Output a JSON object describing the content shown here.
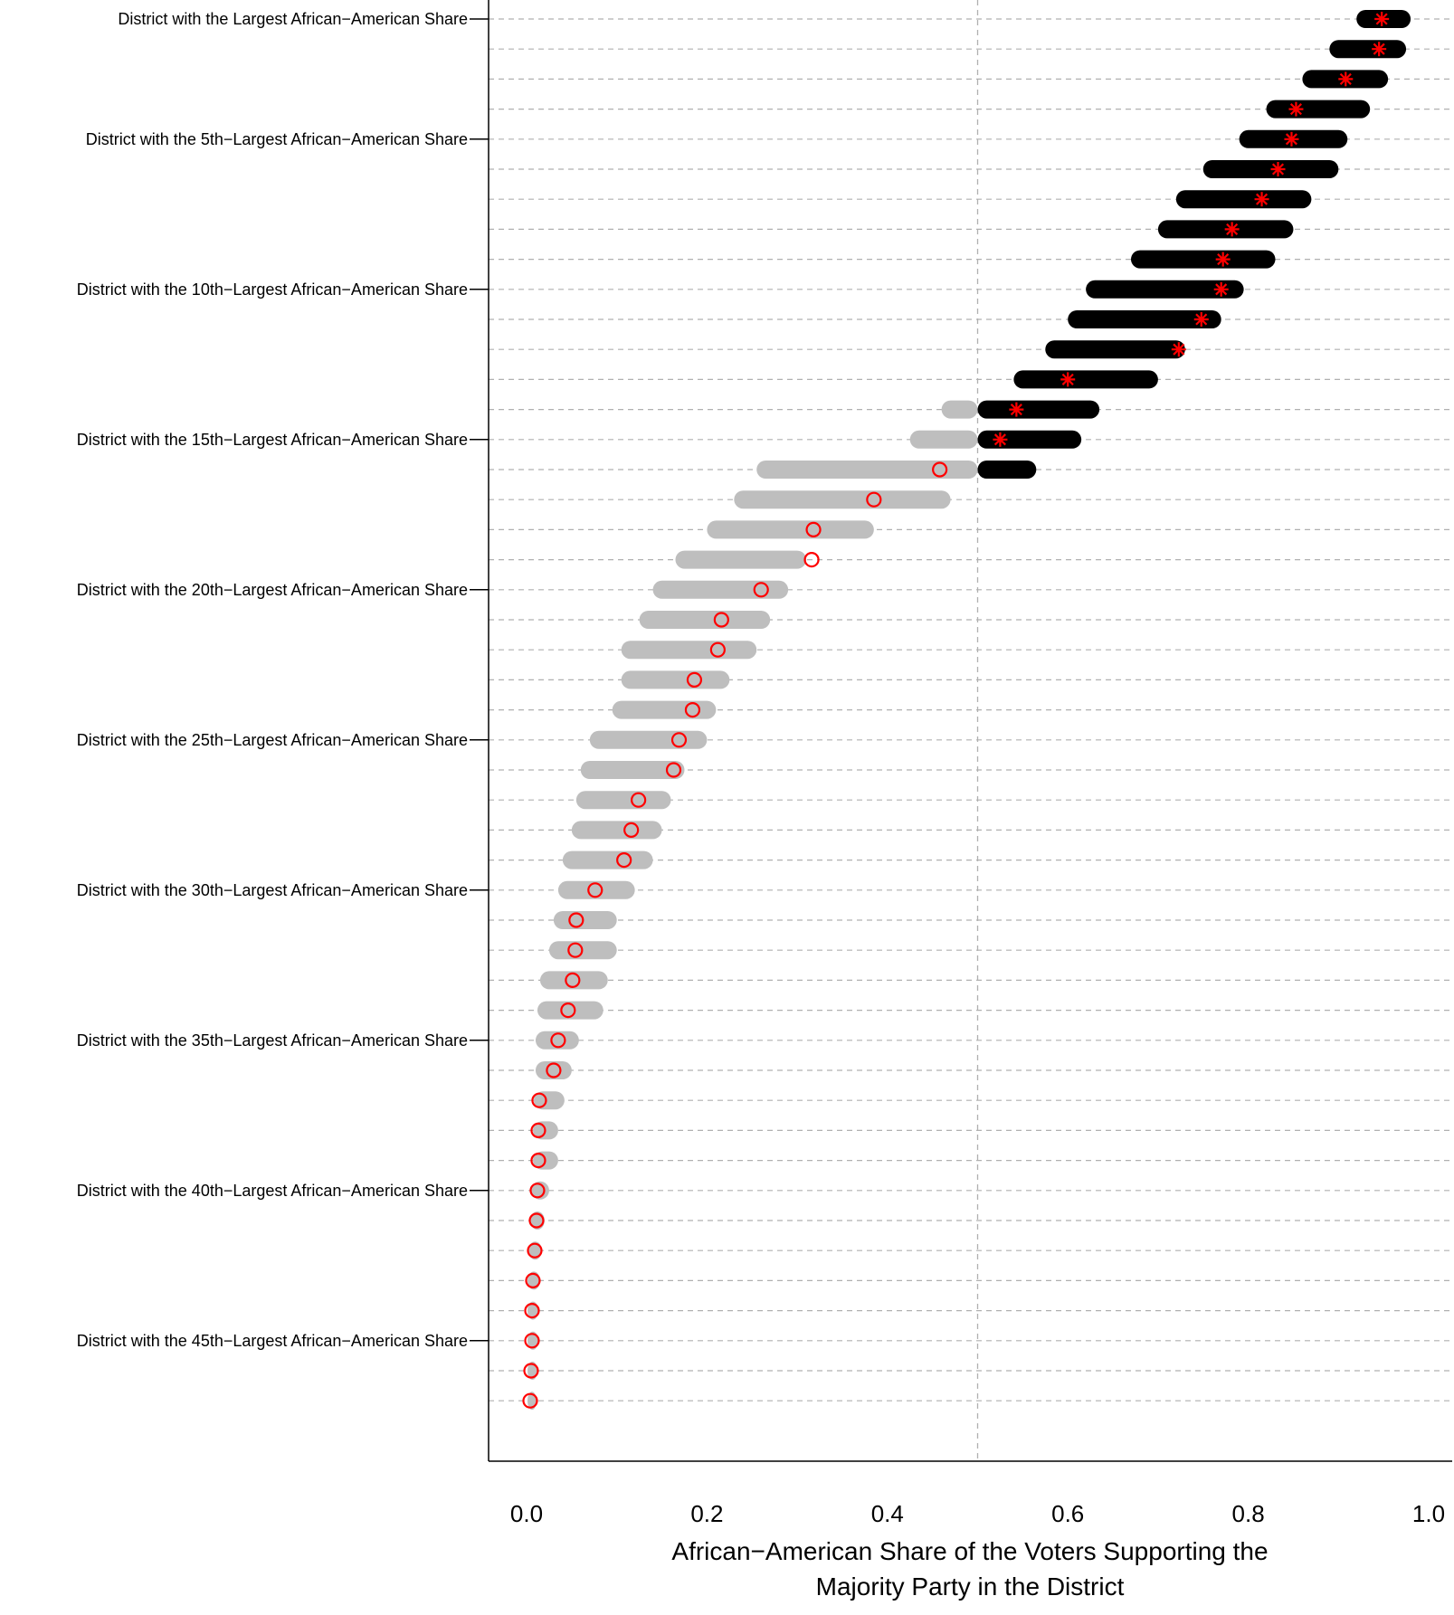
{
  "chart_data": {
    "type": "scatter",
    "title": "",
    "xlabel_lines": [
      "African−American Share of the Voters Supporting the",
      "Majority Party in the District"
    ],
    "xlim": [
      0.0,
      1.0
    ],
    "x_ticks": [
      "0.0",
      "0.2",
      "0.4",
      "0.6",
      "0.8",
      "1.0"
    ],
    "reference_line_x": 0.5,
    "grid": "horizontal dashed lines at each district",
    "y_tick_labels": [
      {
        "rank": 1,
        "text": "District with the Largest African−American Share"
      },
      {
        "rank": 5,
        "text": "District with the 5th−Largest African−American Share"
      },
      {
        "rank": 10,
        "text": "District with the 10th−Largest African−American Share"
      },
      {
        "rank": 15,
        "text": "District with the 15th−Largest African−American Share"
      },
      {
        "rank": 20,
        "text": "District with the 20th−Largest African−American Share"
      },
      {
        "rank": 25,
        "text": "District with the 25th−Largest African−American Share"
      },
      {
        "rank": 30,
        "text": "District with the 30th−Largest African−American Share"
      },
      {
        "rank": 35,
        "text": "District with the 35th−Largest African−American Share"
      },
      {
        "rank": 40,
        "text": "District with the 40th−Largest African−American Share"
      },
      {
        "rank": 45,
        "text": "District with the 45th−Largest African−American Share"
      }
    ],
    "colors": {
      "simulations_below_half": "#bebebe",
      "simulations_above_half": "#000000",
      "estimate": "#ff0000",
      "grid": "#b0b0b0"
    },
    "series": [
      {
        "rank": 1,
        "estimate": 0.948,
        "min": 0.92,
        "max": 0.98
      },
      {
        "rank": 2,
        "estimate": 0.945,
        "min": 0.89,
        "max": 0.975
      },
      {
        "rank": 3,
        "estimate": 0.908,
        "min": 0.86,
        "max": 0.955
      },
      {
        "rank": 4,
        "estimate": 0.853,
        "min": 0.82,
        "max": 0.935
      },
      {
        "rank": 5,
        "estimate": 0.848,
        "min": 0.79,
        "max": 0.91
      },
      {
        "rank": 6,
        "estimate": 0.833,
        "min": 0.75,
        "max": 0.9
      },
      {
        "rank": 7,
        "estimate": 0.815,
        "min": 0.72,
        "max": 0.87
      },
      {
        "rank": 8,
        "estimate": 0.782,
        "min": 0.7,
        "max": 0.85
      },
      {
        "rank": 9,
        "estimate": 0.772,
        "min": 0.67,
        "max": 0.83
      },
      {
        "rank": 10,
        "estimate": 0.77,
        "min": 0.62,
        "max": 0.795
      },
      {
        "rank": 11,
        "estimate": 0.748,
        "min": 0.6,
        "max": 0.77
      },
      {
        "rank": 12,
        "estimate": 0.723,
        "min": 0.575,
        "max": 0.73
      },
      {
        "rank": 13,
        "estimate": 0.6,
        "min": 0.54,
        "max": 0.7
      },
      {
        "rank": 14,
        "estimate": 0.543,
        "min": 0.46,
        "max": 0.635
      },
      {
        "rank": 15,
        "estimate": 0.525,
        "min": 0.425,
        "max": 0.615
      },
      {
        "rank": 16,
        "estimate": 0.458,
        "min": 0.255,
        "max": 0.565
      },
      {
        "rank": 17,
        "estimate": 0.385,
        "min": 0.23,
        "max": 0.47
      },
      {
        "rank": 18,
        "estimate": 0.318,
        "min": 0.2,
        "max": 0.385
      },
      {
        "rank": 19,
        "estimate": 0.316,
        "min": 0.165,
        "max": 0.31
      },
      {
        "rank": 20,
        "estimate": 0.26,
        "min": 0.14,
        "max": 0.29
      },
      {
        "rank": 21,
        "estimate": 0.216,
        "min": 0.125,
        "max": 0.27
      },
      {
        "rank": 22,
        "estimate": 0.212,
        "min": 0.105,
        "max": 0.255
      },
      {
        "rank": 23,
        "estimate": 0.186,
        "min": 0.105,
        "max": 0.225
      },
      {
        "rank": 24,
        "estimate": 0.184,
        "min": 0.095,
        "max": 0.21
      },
      {
        "rank": 25,
        "estimate": 0.169,
        "min": 0.07,
        "max": 0.2
      },
      {
        "rank": 26,
        "estimate": 0.163,
        "min": 0.06,
        "max": 0.175
      },
      {
        "rank": 27,
        "estimate": 0.124,
        "min": 0.055,
        "max": 0.16
      },
      {
        "rank": 28,
        "estimate": 0.116,
        "min": 0.05,
        "max": 0.15
      },
      {
        "rank": 29,
        "estimate": 0.108,
        "min": 0.04,
        "max": 0.14
      },
      {
        "rank": 30,
        "estimate": 0.076,
        "min": 0.035,
        "max": 0.12
      },
      {
        "rank": 31,
        "estimate": 0.055,
        "min": 0.03,
        "max": 0.1
      },
      {
        "rank": 32,
        "estimate": 0.054,
        "min": 0.025,
        "max": 0.1
      },
      {
        "rank": 33,
        "estimate": 0.051,
        "min": 0.015,
        "max": 0.09
      },
      {
        "rank": 34,
        "estimate": 0.046,
        "min": 0.012,
        "max": 0.085
      },
      {
        "rank": 35,
        "estimate": 0.035,
        "min": 0.01,
        "max": 0.058
      },
      {
        "rank": 36,
        "estimate": 0.03,
        "min": 0.01,
        "max": 0.05
      },
      {
        "rank": 37,
        "estimate": 0.014,
        "min": 0.008,
        "max": 0.042
      },
      {
        "rank": 38,
        "estimate": 0.013,
        "min": 0.007,
        "max": 0.035
      },
      {
        "rank": 39,
        "estimate": 0.013,
        "min": 0.007,
        "max": 0.035
      },
      {
        "rank": 40,
        "estimate": 0.012,
        "min": 0.005,
        "max": 0.025
      },
      {
        "rank": 41,
        "estimate": 0.011,
        "min": 0.004,
        "max": 0.02
      },
      {
        "rank": 42,
        "estimate": 0.009,
        "min": 0.002,
        "max": 0.017
      },
      {
        "rank": 43,
        "estimate": 0.007,
        "min": 0.001,
        "max": 0.015
      },
      {
        "rank": 44,
        "estimate": 0.006,
        "min": 0.001,
        "max": 0.013
      },
      {
        "rank": 45,
        "estimate": 0.006,
        "min": 0.001,
        "max": 0.013
      },
      {
        "rank": 46,
        "estimate": 0.005,
        "min": 0.001,
        "max": 0.012
      },
      {
        "rank": 47,
        "estimate": 0.004,
        "min": 0.001,
        "max": 0.011
      }
    ]
  }
}
